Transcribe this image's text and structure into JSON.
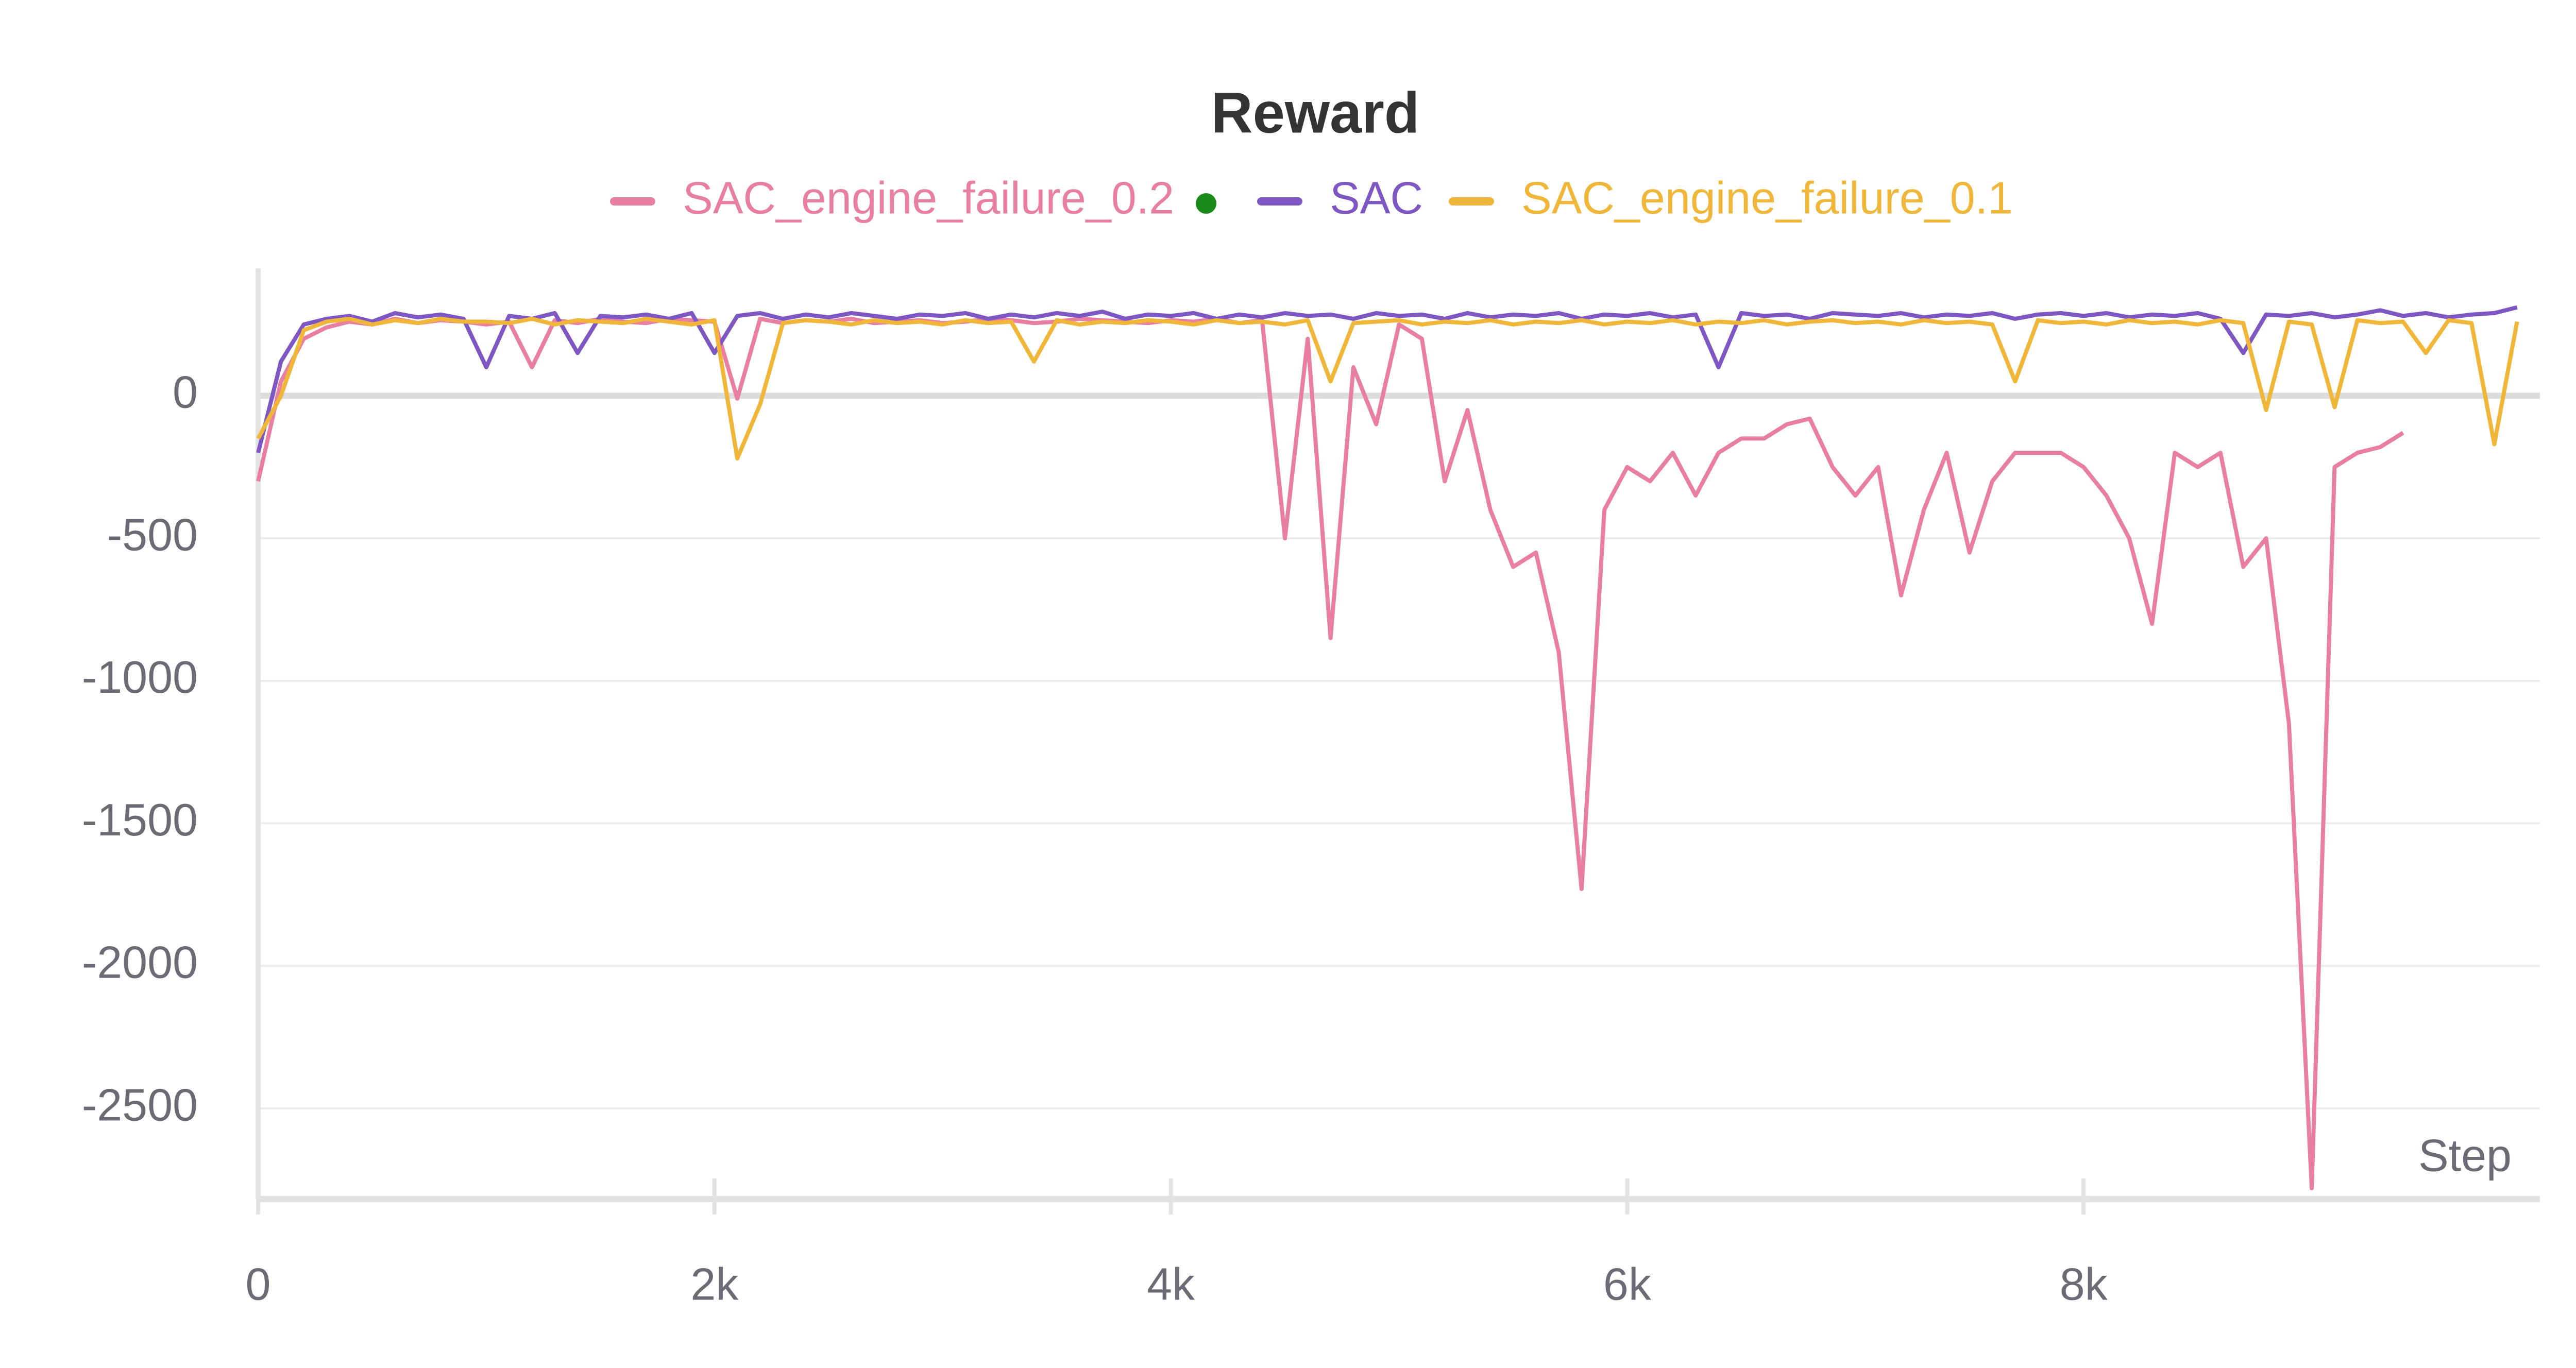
{
  "chart_data": {
    "type": "line",
    "title": "Reward",
    "xlabel": "Step",
    "x": [
      0,
      100,
      200,
      300,
      400,
      500,
      600,
      700,
      800,
      900,
      1000,
      1100,
      1200,
      1300,
      1400,
      1500,
      1600,
      1700,
      1800,
      1900,
      2000,
      2100,
      2200,
      2300,
      2400,
      2500,
      2600,
      2700,
      2800,
      2900,
      3000,
      3100,
      3200,
      3300,
      3400,
      3500,
      3600,
      3700,
      3800,
      3900,
      4000,
      4100,
      4200,
      4300,
      4400,
      4500,
      4600,
      4700,
      4800,
      4900,
      5000,
      5100,
      5200,
      5300,
      5400,
      5500,
      5600,
      5700,
      5800,
      5900,
      6000,
      6100,
      6200,
      6300,
      6400,
      6500,
      6600,
      6700,
      6800,
      6900,
      7000,
      7100,
      7200,
      7300,
      7400,
      7500,
      7600,
      7700,
      7800,
      7900,
      8000,
      8100,
      8200,
      8300,
      8400,
      8500,
      8600,
      8700,
      8800,
      8900,
      9000,
      9100,
      9200,
      9300,
      9400,
      9500,
      9600,
      9700,
      9800,
      9900
    ],
    "series": [
      {
        "name": "SAC_engine_failure_0.2",
        "color": "#e87ea1",
        "values": [
          -300,
          50,
          200,
          240,
          260,
          250,
          270,
          255,
          265,
          260,
          250,
          260,
          100,
          265,
          255,
          270,
          260,
          255,
          270,
          265,
          260,
          -10,
          270,
          255,
          265,
          260,
          270,
          255,
          260,
          265,
          255,
          260,
          270,
          265,
          255,
          260,
          270,
          265,
          260,
          255,
          265,
          260,
          270,
          255,
          265,
          -500,
          200,
          -850,
          100,
          -100,
          250,
          200,
          -300,
          -50,
          -400,
          -600,
          -550,
          -900,
          -1730,
          -400,
          -250,
          -300,
          -200,
          -350,
          -200,
          -150,
          -150,
          -100,
          -80,
          -250,
          -350,
          -250,
          -700,
          -400,
          -200,
          -550,
          -300,
          -200,
          -200,
          -200,
          -250,
          -350,
          -500,
          -800,
          -200,
          -250,
          -200,
          -600,
          -500,
          -1150,
          -2780,
          -250,
          -200,
          -180,
          -130,
          null,
          null,
          null,
          null,
          null
        ]
      },
      {
        "name": "SAC",
        "color": "#7e57c2",
        "values": [
          -200,
          120,
          250,
          270,
          280,
          260,
          290,
          275,
          285,
          270,
          100,
          280,
          270,
          290,
          150,
          280,
          275,
          285,
          270,
          290,
          150,
          280,
          290,
          270,
          285,
          275,
          290,
          280,
          270,
          285,
          280,
          290,
          270,
          285,
          275,
          290,
          280,
          295,
          270,
          285,
          280,
          290,
          270,
          285,
          275,
          290,
          280,
          285,
          270,
          290,
          280,
          285,
          270,
          290,
          275,
          285,
          280,
          290,
          270,
          285,
          280,
          290,
          275,
          285,
          100,
          290,
          280,
          285,
          270,
          290,
          285,
          280,
          290,
          275,
          285,
          280,
          290,
          270,
          285,
          290,
          280,
          290,
          275,
          285,
          280,
          290,
          270,
          150,
          285,
          280,
          290,
          275,
          285,
          300,
          280,
          290,
          275,
          285,
          290,
          310
        ]
      },
      {
        "name": "SAC_engine_failure_0.1",
        "color": "#f0b63a",
        "values": [
          -150,
          0,
          230,
          260,
          270,
          250,
          265,
          255,
          270,
          260,
          260,
          255,
          270,
          250,
          265,
          260,
          255,
          270,
          260,
          250,
          265,
          -220,
          -30,
          255,
          265,
          260,
          250,
          265,
          255,
          260,
          250,
          265,
          255,
          260,
          120,
          265,
          250,
          260,
          255,
          265,
          260,
          250,
          265,
          255,
          260,
          250,
          265,
          50,
          255,
          260,
          265,
          250,
          260,
          255,
          265,
          250,
          260,
          255,
          265,
          250,
          260,
          255,
          265,
          250,
          260,
          255,
          265,
          250,
          260,
          265,
          255,
          260,
          250,
          265,
          255,
          260,
          250,
          50,
          265,
          255,
          260,
          250,
          265,
          255,
          260,
          250,
          265,
          255,
          -50,
          260,
          250,
          -40,
          265,
          255,
          260,
          150,
          265,
          255,
          -170,
          260
        ]
      }
    ],
    "xlim": [
      0,
      10000
    ],
    "ylim": [
      -2818,
      447
    ],
    "xticks": [
      0,
      {
        "value": 2000,
        "label": "2k"
      },
      {
        "value": 4000,
        "label": "4k"
      },
      {
        "value": 6000,
        "label": "6k"
      },
      {
        "value": 8000,
        "label": "8k"
      }
    ],
    "yticks": [
      -2500,
      -2000,
      -1500,
      -1000,
      -500,
      0
    ],
    "grid": true
  }
}
